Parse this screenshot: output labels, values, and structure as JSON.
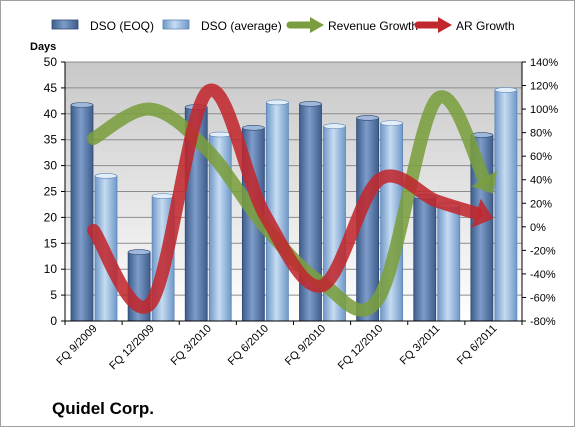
{
  "chart_data": {
    "type": "bar",
    "title": "Quidel Corp.",
    "y_left_label": "Days",
    "categories": [
      "FQ 9/2009",
      "FQ 12/2009",
      "FQ 3/2010",
      "FQ 6/2010",
      "FQ 9/2010",
      "FQ 12/2010",
      "FQ 3/2011",
      "FQ 6/2011"
    ],
    "y_left_ticks": [
      "0",
      "5",
      "10",
      "15",
      "20",
      "25",
      "30",
      "35",
      "40",
      "45",
      "50"
    ],
    "y_right_ticks": [
      "-80%",
      "-60%",
      "-40%",
      "-20%",
      "0%",
      "20%",
      "40%",
      "60%",
      "80%",
      "100%",
      "120%",
      "140%"
    ],
    "y_left_range": [
      0,
      50
    ],
    "y_right_range": [
      -80,
      140
    ],
    "legend_position": "top",
    "series": [
      {
        "name": "DSO (EOQ)",
        "kind": "bar",
        "axis": "left",
        "color": "#4f6f9f",
        "values": [
          41.7,
          13.3,
          41.3,
          37.3,
          41.9,
          39.2,
          24.0,
          35.9
        ]
      },
      {
        "name": "DSO (average)",
        "kind": "bar",
        "axis": "left",
        "color": "#8fb3da",
        "values": [
          28.0,
          24.1,
          36.0,
          42.2,
          37.6,
          38.2,
          22.3,
          44.6
        ]
      },
      {
        "name": "Revenue Growth",
        "kind": "arrow",
        "axis": "right",
        "color": "#7a9e3d",
        "values": [
          75,
          100,
          65,
          0,
          -48,
          -60,
          108,
          28
        ]
      },
      {
        "name": "AR Growth",
        "kind": "arrow",
        "axis": "right",
        "color": "#c0282d",
        "values": [
          -3,
          -65,
          115,
          10,
          -50,
          40,
          22,
          7
        ]
      }
    ]
  }
}
